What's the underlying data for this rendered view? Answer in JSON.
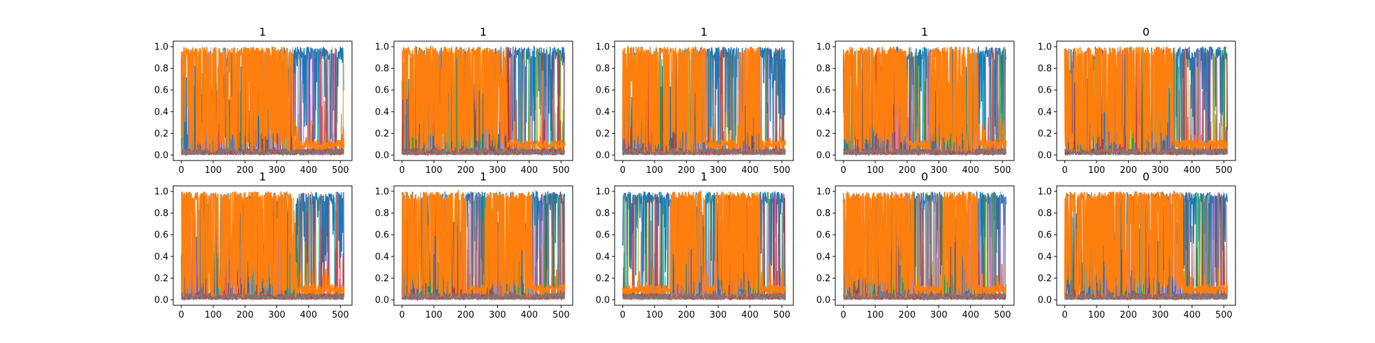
{
  "chart_data": {
    "type": "line",
    "layout": "2x5 grid of subplots",
    "panel_titles": [
      "1",
      "1",
      "1",
      "1",
      "0",
      "1",
      "1",
      "1",
      "0",
      "0"
    ],
    "xlim": [
      0,
      511
    ],
    "ylim": [
      0.0,
      1.0
    ],
    "xticks": [
      0,
      100,
      200,
      300,
      400,
      500
    ],
    "yticks": [
      0.0,
      0.2,
      0.4,
      0.6,
      0.8,
      1.0
    ],
    "xtick_labels": [
      "0",
      "100",
      "200",
      "300",
      "400",
      "500"
    ],
    "ytick_labels": [
      "0.0",
      "0.2",
      "0.4",
      "0.6",
      "0.8",
      "1.0"
    ],
    "grid": false,
    "legend": "none",
    "series_colors": {
      "blue": "#1f77b4",
      "orange": "#ff7f0e",
      "minor": [
        "#17becf",
        "#bcbd22",
        "#2ca02c",
        "#9467bd",
        "#e377c2",
        "#d62728",
        "#8c564b",
        "#7f7f7f"
      ]
    },
    "description_of_series": "Each panel plots many overlapping per-class probability series over 512 steps; the dominant series are blue and orange, which alternate between near 1.0 and near 0.0. In segments labelled blue-dominant the orange series settles around 0.1.",
    "orange_segments": [
      [
        [
          0,
          350,
          "high"
        ],
        [
          350,
          511,
          "low"
        ]
      ],
      [
        [
          0,
          330,
          "high"
        ],
        [
          330,
          511,
          "low"
        ]
      ],
      [
        [
          0,
          260,
          "high"
        ],
        [
          260,
          370,
          "low"
        ],
        [
          370,
          430,
          "high"
        ],
        [
          430,
          511,
          "low"
        ]
      ],
      [
        [
          0,
          200,
          "high"
        ],
        [
          200,
          270,
          "low"
        ],
        [
          270,
          420,
          "high"
        ],
        [
          420,
          511,
          "low"
        ]
      ],
      [
        [
          0,
          340,
          "high"
        ],
        [
          340,
          511,
          "low"
        ]
      ],
      [
        [
          0,
          360,
          "high"
        ],
        [
          360,
          511,
          "low"
        ]
      ],
      [
        [
          0,
          200,
          "high"
        ],
        [
          200,
          260,
          "low"
        ],
        [
          260,
          410,
          "high"
        ],
        [
          410,
          511,
          "low"
        ]
      ],
      [
        [
          0,
          150,
          "low"
        ],
        [
          150,
          260,
          "high"
        ],
        [
          260,
          290,
          "low"
        ],
        [
          290,
          430,
          "high"
        ],
        [
          430,
          511,
          "low"
        ]
      ],
      [
        [
          0,
          220,
          "high"
        ],
        [
          220,
          310,
          "low"
        ],
        [
          310,
          420,
          "high"
        ],
        [
          420,
          511,
          "low"
        ]
      ],
      [
        [
          0,
          370,
          "high"
        ],
        [
          370,
          511,
          "low"
        ]
      ]
    ]
  }
}
